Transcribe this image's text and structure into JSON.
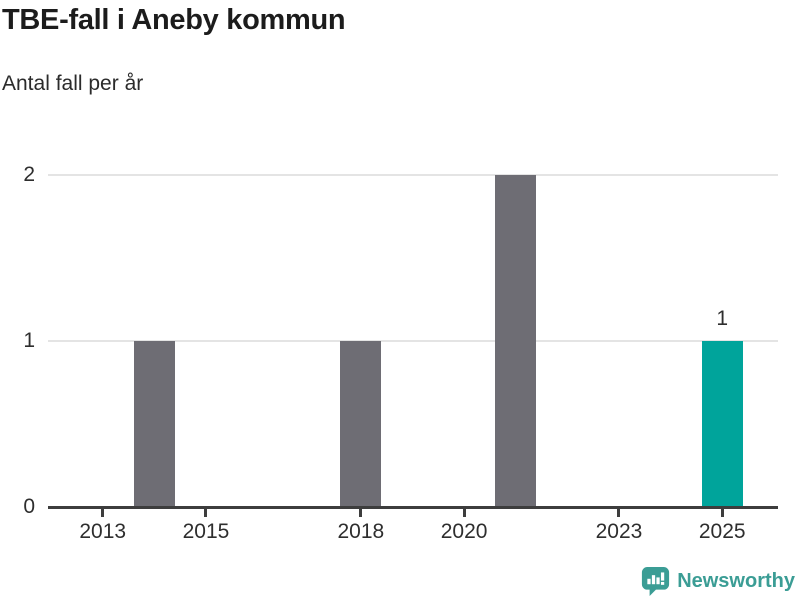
{
  "chart": {
    "title": "TBE-fall i Aneby kommun",
    "subtitle": "Antal fall per år"
  },
  "chart_data": {
    "type": "bar",
    "title": "TBE-fall i Aneby kommun",
    "subtitle": "Antal fall per år",
    "x": [
      2014,
      2018,
      2021,
      2025
    ],
    "values": [
      1,
      1,
      2,
      1
    ],
    "bar_colors": [
      "#6e6d74",
      "#6e6d74",
      "#6e6d74",
      "#00a49b"
    ],
    "default_bar_color": "#6e6d74",
    "highlight_color": "#00a49b",
    "data_labels": [
      {
        "x": 2025,
        "label": "1"
      }
    ],
    "x_ticks": [
      2013,
      2015,
      2018,
      2020,
      2023,
      2025
    ],
    "x_tick_labels": [
      "2013",
      "2015",
      "2018",
      "2020",
      "2023",
      "2025"
    ],
    "y_ticks": [
      0,
      1,
      2
    ],
    "y_tick_labels": [
      "0",
      "1",
      "2"
    ],
    "xlim": [
      2011.94,
      2026.08
    ],
    "ylim": [
      0,
      2
    ],
    "grid": "horizontal-at-1-and-2",
    "legend": "none",
    "xlabel": "",
    "ylabel": "Antal fall per år",
    "colors": {
      "axis": "#3d3d3d",
      "grid": "#e4e4e4",
      "labels": "#2e2e2e",
      "title": "#1c1c1c"
    }
  },
  "footer": {
    "brand": "Newsworthy",
    "brand_color": "#3b9d95"
  }
}
